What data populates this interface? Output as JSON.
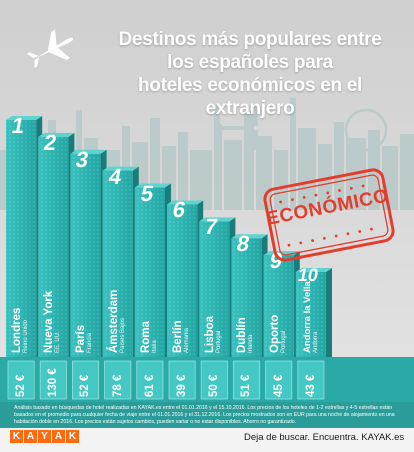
{
  "title_lines": [
    "Destinos más populares entre",
    "los españoles para",
    "hoteles económicos en el extranjero"
  ],
  "stamp_label": "ECONÓMICO",
  "currency": "€",
  "colors": {
    "bar": "#2fb4b1",
    "bar_dark": "#1a7d7b",
    "sky": "#d7d7d7",
    "footer": "#2a9c9a",
    "stamp": "#e33d2e",
    "logo": "#ff690f"
  },
  "chart_data": {
    "type": "bar",
    "title": "Destinos más populares entre los españoles para hoteles económicos en el extranjero",
    "categories": [
      "Londres",
      "Nueva York",
      "París",
      "Ámsterdam",
      "Roma",
      "Berlín",
      "Lisboa",
      "Dublín",
      "Oporto",
      "Andorra la Vella"
    ],
    "countries": [
      "Reino Unido",
      "EE. UU.",
      "Francia",
      "Países Bajos",
      "Italia",
      "Alemania",
      "Portugal",
      "Irlanda",
      "Portugal",
      "Andorra"
    ],
    "ranks": [
      "1",
      "2",
      "3",
      "4",
      "5",
      "6",
      "7",
      "8",
      "9",
      "10"
    ],
    "values": [
      52,
      130,
      52,
      78,
      61,
      39,
      50,
      51,
      45,
      43
    ],
    "price_labels": [
      "52 €",
      "130 €",
      "52 €",
      "78 €",
      "61 €",
      "39 €",
      "50 €",
      "51 €",
      "45 €",
      "43 €"
    ]
  },
  "footer": {
    "disclaimer": "Análisis basado en búsquedas de hotel realizadas en KAYAK.es entre el 01.01.2016 y el 15.10.2016. Los precios de los hoteles de 1-2 estrellas y 4-5 estrellas están basados en el promedio para cualquier fecha de viaje entre el 01.01.2016 y el 31.12.2016. Los precios mostrados son en EUR para una noche de alojamiento en una habitación doble en 2016. Los precios están sujetos cambios, pueden variar o no estar disponibles. Ahorro no garantizado.",
    "logo_letters": [
      "K",
      "A",
      "Y",
      "A",
      "K"
    ],
    "slogan": "Deja de buscar. Encuentra. KAYAK.es"
  }
}
